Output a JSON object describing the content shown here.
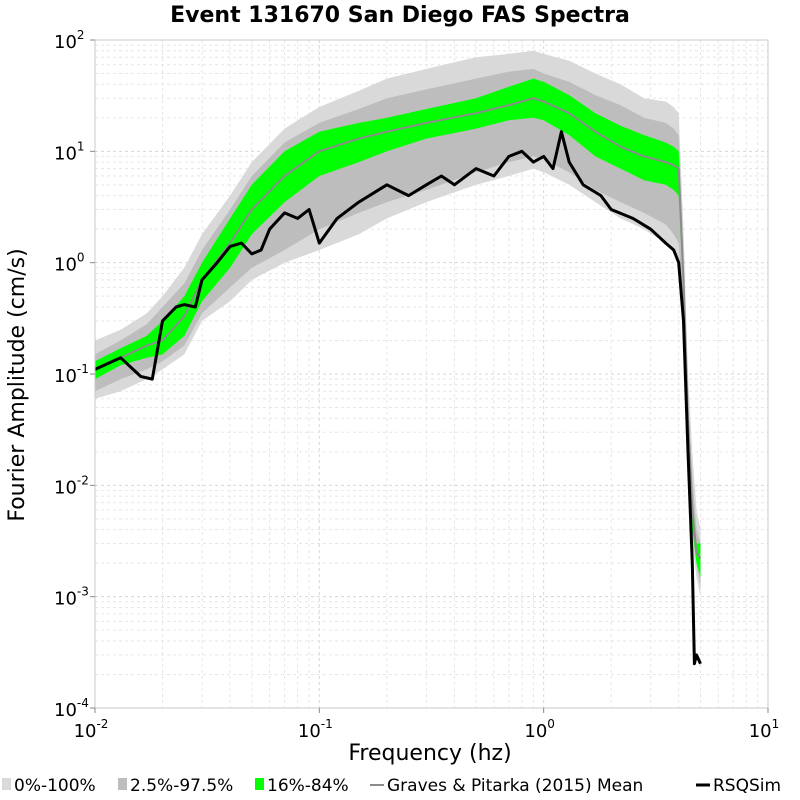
{
  "chart_data": {
    "type": "line",
    "title": "Event 131670 San Diego FAS Spectra",
    "xlabel": "Frequency (hz)",
    "ylabel": "Fourier Amplitude (cm/s)",
    "x_scale": "log",
    "y_scale": "log",
    "xlim": [
      0.01,
      10
    ],
    "ylim": [
      0.0001,
      100
    ],
    "grid": true,
    "legend_position": "bottom",
    "x_ticks": [
      {
        "base": "10",
        "exp": "-2"
      },
      {
        "base": "10",
        "exp": "-1"
      },
      {
        "base": "10",
        "exp": "0"
      },
      {
        "base": "10",
        "exp": "1"
      }
    ],
    "y_ticks": [
      {
        "base": "10",
        "exp": "-4"
      },
      {
        "base": "10",
        "exp": "-3"
      },
      {
        "base": "10",
        "exp": "-2"
      },
      {
        "base": "10",
        "exp": "-1"
      },
      {
        "base": "10",
        "exp": "0"
      },
      {
        "base": "10",
        "exp": "1"
      },
      {
        "base": "10",
        "exp": "2"
      }
    ],
    "x": [
      0.01,
      0.013,
      0.017,
      0.02,
      0.025,
      0.03,
      0.04,
      0.05,
      0.07,
      0.1,
      0.15,
      0.2,
      0.3,
      0.5,
      0.7,
      0.9,
      1.0,
      1.3,
      1.7,
      2.2,
      2.8,
      3.5,
      3.8,
      4.0,
      4.2,
      4.4,
      4.6,
      4.8,
      5.0
    ],
    "bands": [
      {
        "name": "0%-100%",
        "color": "#d9d9d9",
        "lower": [
          0.06,
          0.07,
          0.09,
          0.11,
          0.15,
          0.3,
          0.45,
          0.7,
          1.0,
          1.3,
          1.8,
          2.5,
          3.5,
          5.0,
          6.0,
          7.0,
          6.5,
          5.0,
          3.5,
          2.5,
          2.0,
          1.5,
          1.3,
          1.0,
          0.2,
          0.02,
          0.003,
          0.0015,
          0.001
        ],
        "upper": [
          0.2,
          0.25,
          0.35,
          0.5,
          0.9,
          1.8,
          4.0,
          8.0,
          16,
          25,
          35,
          45,
          55,
          70,
          75,
          80,
          75,
          65,
          50,
          40,
          30,
          28,
          25,
          22,
          2.0,
          0.1,
          0.02,
          0.006,
          0.004
        ]
      },
      {
        "name": "2.5%-97.5%",
        "color": "#bdbdbd",
        "lower": [
          0.07,
          0.09,
          0.11,
          0.13,
          0.18,
          0.35,
          0.6,
          0.9,
          1.3,
          2.0,
          2.8,
          3.5,
          4.5,
          6.5,
          8.0,
          9.0,
          8.5,
          6.5,
          4.5,
          3.5,
          2.8,
          2.2,
          1.8,
          1.5,
          0.3,
          0.03,
          0.004,
          0.002,
          0.0012
        ],
        "upper": [
          0.15,
          0.2,
          0.28,
          0.4,
          0.65,
          1.3,
          3.0,
          6.0,
          12,
          18,
          24,
          30,
          36,
          45,
          52,
          55,
          50,
          42,
          32,
          26,
          20,
          18,
          16,
          14,
          1.2,
          0.06,
          0.012,
          0.004,
          0.003
        ]
      },
      {
        "name": "16%-84%",
        "color": "#00ff00",
        "lower": [
          0.09,
          0.12,
          0.14,
          0.15,
          0.22,
          0.45,
          0.9,
          1.8,
          3.5,
          6.0,
          8.0,
          10,
          13,
          16,
          19,
          20,
          19,
          14,
          9.0,
          7.0,
          5.5,
          5.0,
          4.5,
          4.0,
          0.5,
          0.03,
          0.004,
          0.002,
          0.0015
        ],
        "upper": [
          0.13,
          0.17,
          0.22,
          0.3,
          0.5,
          1.0,
          2.5,
          5.0,
          10,
          15,
          18,
          20,
          24,
          30,
          38,
          45,
          42,
          32,
          22,
          17,
          14,
          12,
          11,
          10,
          1.0,
          0.05,
          0.008,
          0.003,
          0.003
        ]
      }
    ],
    "series": [
      {
        "name": "Graves & Pitarka (2015) Mean",
        "color": "#8c8c8c",
        "values": [
          0.11,
          0.14,
          0.18,
          0.2,
          0.33,
          0.7,
          1.5,
          3.0,
          6.0,
          10,
          13,
          15,
          18,
          22,
          26,
          30,
          28,
          22,
          15,
          11,
          9.0,
          8.0,
          7.5,
          7.0,
          0.7,
          0.04,
          0.006,
          0.0025,
          0.0022
        ]
      },
      {
        "name": "RSQSim",
        "color": "#000000",
        "x": [
          0.01,
          0.013,
          0.016,
          0.018,
          0.02,
          0.023,
          0.025,
          0.028,
          0.03,
          0.035,
          0.04,
          0.045,
          0.05,
          0.055,
          0.06,
          0.07,
          0.08,
          0.09,
          0.1,
          0.12,
          0.15,
          0.2,
          0.25,
          0.3,
          0.35,
          0.4,
          0.5,
          0.6,
          0.7,
          0.8,
          0.9,
          1.0,
          1.1,
          1.2,
          1.3,
          1.5,
          1.8,
          2.0,
          2.5,
          3.0,
          3.5,
          3.8,
          4.0,
          4.2,
          4.4,
          4.6,
          4.7,
          4.8,
          5.0
        ],
        "values": [
          0.11,
          0.14,
          0.095,
          0.09,
          0.3,
          0.4,
          0.42,
          0.4,
          0.7,
          1.0,
          1.4,
          1.5,
          1.2,
          1.3,
          2.0,
          2.8,
          2.5,
          3.0,
          1.5,
          2.5,
          3.5,
          5.0,
          4.0,
          5.0,
          6.0,
          5.0,
          7.0,
          6.0,
          9.0,
          10,
          8.0,
          9.0,
          7.0,
          15,
          8.0,
          5.0,
          4.0,
          3.0,
          2.5,
          2.0,
          1.5,
          1.3,
          1.0,
          0.3,
          0.02,
          0.002,
          0.00025,
          0.0003,
          0.00025
        ]
      }
    ]
  }
}
